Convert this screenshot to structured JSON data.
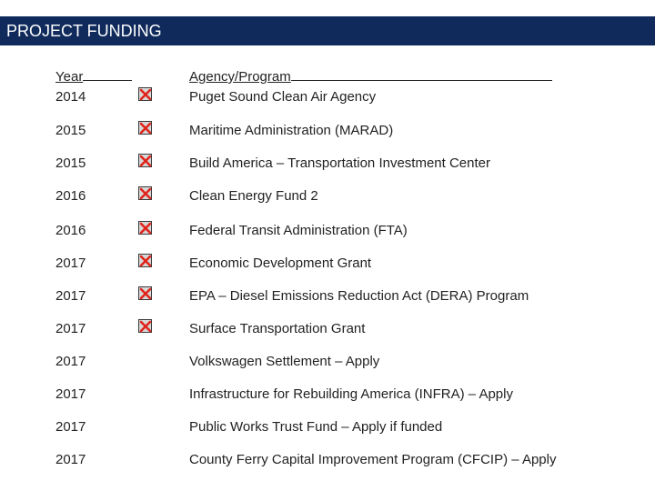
{
  "title": "PROJECT FUNDING",
  "headers": {
    "year": "Year",
    "agency": "Agency/Program"
  },
  "colors": {
    "title_bar": "#0f2a5b",
    "mark": "#e0241b"
  },
  "rows": [
    {
      "year": "2014",
      "agency": "Puget Sound Clean Air Agency",
      "checked": true
    },
    {
      "year": "2015",
      "agency": "Maritime Administration (MARAD)",
      "checked": true
    },
    {
      "year": "2015",
      "agency": "Build America – Transportation Investment Center",
      "checked": true
    },
    {
      "year": "2016",
      "agency": "Clean Energy Fund 2",
      "checked": true
    },
    {
      "year": "2016",
      "agency": "Federal Transit Administration (FTA)",
      "checked": true
    },
    {
      "year": "2017",
      "agency": "Economic Development Grant",
      "checked": true
    },
    {
      "year": "2017",
      "agency": "EPA – Diesel Emissions Reduction Act (DERA) Program",
      "checked": true
    },
    {
      "year": "2017",
      "agency": "Surface Transportation Grant",
      "checked": true
    },
    {
      "year": "2017",
      "agency": "Volkswagen Settlement – Apply",
      "checked": false
    },
    {
      "year": "2017",
      "agency": "Infrastructure for Rebuilding America (INFRA) – Apply",
      "checked": false
    },
    {
      "year": "2017",
      "agency": "Public Works Trust Fund – Apply if funded",
      "checked": false
    },
    {
      "year": "2017",
      "agency": "County Ferry Capital Improvement Program (CFCIP) – Apply",
      "checked": false
    }
  ]
}
